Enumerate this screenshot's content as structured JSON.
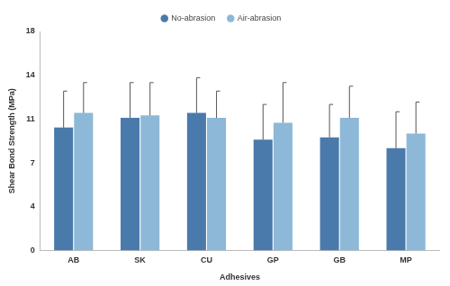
{
  "chart_data": {
    "type": "bar",
    "x_label": "Adhesives",
    "y_label": "Shear Bond Strength (MPa)",
    "categories": [
      "AB",
      "SK",
      "CU",
      "GP",
      "GB",
      "MP"
    ],
    "series": [
      {
        "name": "No-abrasion",
        "color": "#4a7aab",
        "values": [
          10.1,
          10.9,
          11.3,
          9.1,
          9.3,
          8.4
        ],
        "errors": [
          3.0,
          2.9,
          2.9,
          2.9,
          2.7,
          3.0
        ]
      },
      {
        "name": "Air-abrasion",
        "color": "#8db8d8",
        "values": [
          11.3,
          11.1,
          10.9,
          10.5,
          10.9,
          9.6
        ],
        "errors": [
          2.5,
          2.7,
          2.2,
          3.3,
          2.6,
          2.6
        ]
      }
    ],
    "ylim": [
      0,
      18
    ],
    "yticks": [
      0,
      {
        "value": 3.6,
        "label": "4"
      },
      {
        "value": 7.2,
        "label": "7"
      },
      {
        "value": 10.8,
        "label": "11"
      },
      {
        "value": 14.4,
        "label": "14"
      },
      18
    ],
    "grid": false,
    "legend": "top"
  }
}
